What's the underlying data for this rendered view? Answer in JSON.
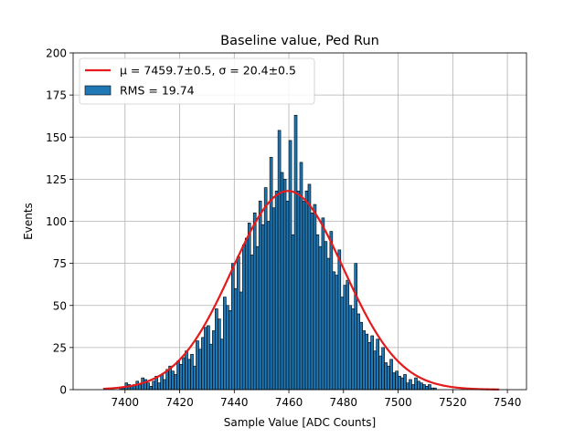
{
  "chart_data": {
    "type": "bar",
    "title": "Baseline value, Ped Run",
    "xlabel": "Sample Value [ADC Counts]",
    "ylabel": "Events",
    "xlim": [
      7381,
      7547
    ],
    "ylim": [
      0,
      200
    ],
    "xticks": [
      7400,
      7420,
      7440,
      7460,
      7480,
      7500,
      7520,
      7540
    ],
    "yticks": [
      0,
      25,
      50,
      75,
      100,
      125,
      150,
      175,
      200
    ],
    "grid": true,
    "legend_position": "top-left",
    "bin_width": 1,
    "legend": {
      "fit_label": "μ = 7459.7±0.5, σ = 20.4±0.5",
      "hist_label": "RMS = 19.74"
    },
    "fit": {
      "mu": 7459.7,
      "sigma": 20.4,
      "amplitude": 118,
      "x_range": [
        7392,
        7537
      ],
      "color": "#e41a1c"
    },
    "histogram": {
      "color": "#1f77b4",
      "edge_color": "#000000",
      "bins": [
        [
          7398,
          1
        ],
        [
          7399,
          1
        ],
        [
          7400,
          4
        ],
        [
          7401,
          3
        ],
        [
          7402,
          2
        ],
        [
          7403,
          3
        ],
        [
          7404,
          5
        ],
        [
          7405,
          3
        ],
        [
          7406,
          7
        ],
        [
          7407,
          6
        ],
        [
          7408,
          4
        ],
        [
          7409,
          2
        ],
        [
          7410,
          5
        ],
        [
          7411,
          8
        ],
        [
          7412,
          4
        ],
        [
          7413,
          9
        ],
        [
          7414,
          6
        ],
        [
          7415,
          12
        ],
        [
          7416,
          14
        ],
        [
          7417,
          11
        ],
        [
          7418,
          9
        ],
        [
          7419,
          17
        ],
        [
          7420,
          15
        ],
        [
          7421,
          19
        ],
        [
          7422,
          23
        ],
        [
          7423,
          18
        ],
        [
          7424,
          21
        ],
        [
          7425,
          14
        ],
        [
          7426,
          29
        ],
        [
          7427,
          24
        ],
        [
          7428,
          31
        ],
        [
          7429,
          37
        ],
        [
          7430,
          38
        ],
        [
          7431,
          27
        ],
        [
          7432,
          35
        ],
        [
          7433,
          48
        ],
        [
          7434,
          42
        ],
        [
          7435,
          30
        ],
        [
          7436,
          55
        ],
        [
          7437,
          50
        ],
        [
          7438,
          47
        ],
        [
          7439,
          75
        ],
        [
          7440,
          60
        ],
        [
          7441,
          79
        ],
        [
          7442,
          58
        ],
        [
          7443,
          86
        ],
        [
          7444,
          90
        ],
        [
          7445,
          99
        ],
        [
          7446,
          80
        ],
        [
          7447,
          105
        ],
        [
          7448,
          85
        ],
        [
          7449,
          112
        ],
        [
          7450,
          98
        ],
        [
          7451,
          120
        ],
        [
          7452,
          100
        ],
        [
          7453,
          138
        ],
        [
          7454,
          108
        ],
        [
          7455,
          118
        ],
        [
          7456,
          154
        ],
        [
          7457,
          129
        ],
        [
          7458,
          125
        ],
        [
          7459,
          112
        ],
        [
          7460,
          148
        ],
        [
          7461,
          92
        ],
        [
          7462,
          163
        ],
        [
          7463,
          118
        ],
        [
          7464,
          135
        ],
        [
          7465,
          112
        ],
        [
          7466,
          118
        ],
        [
          7467,
          122
        ],
        [
          7468,
          105
        ],
        [
          7469,
          110
        ],
        [
          7470,
          92
        ],
        [
          7471,
          85
        ],
        [
          7472,
          102
        ],
        [
          7473,
          88
        ],
        [
          7474,
          78
        ],
        [
          7475,
          94
        ],
        [
          7476,
          70
        ],
        [
          7477,
          68
        ],
        [
          7478,
          83
        ],
        [
          7479,
          55
        ],
        [
          7480,
          62
        ],
        [
          7481,
          65
        ],
        [
          7482,
          50
        ],
        [
          7483,
          48
        ],
        [
          7484,
          75
        ],
        [
          7485,
          45
        ],
        [
          7486,
          40
        ],
        [
          7487,
          35
        ],
        [
          7488,
          33
        ],
        [
          7489,
          28
        ],
        [
          7490,
          32
        ],
        [
          7491,
          23
        ],
        [
          7492,
          30
        ],
        [
          7493,
          20
        ],
        [
          7494,
          25
        ],
        [
          7495,
          16
        ],
        [
          7496,
          14
        ],
        [
          7497,
          18
        ],
        [
          7498,
          10
        ],
        [
          7499,
          11
        ],
        [
          7500,
          8
        ],
        [
          7501,
          7
        ],
        [
          7502,
          9
        ],
        [
          7503,
          4
        ],
        [
          7504,
          6
        ],
        [
          7505,
          3
        ],
        [
          7506,
          7
        ],
        [
          7507,
          5
        ],
        [
          7508,
          4
        ],
        [
          7509,
          3
        ],
        [
          7510,
          2
        ],
        [
          7511,
          3
        ],
        [
          7512,
          1
        ],
        [
          7513,
          1
        ]
      ]
    }
  }
}
